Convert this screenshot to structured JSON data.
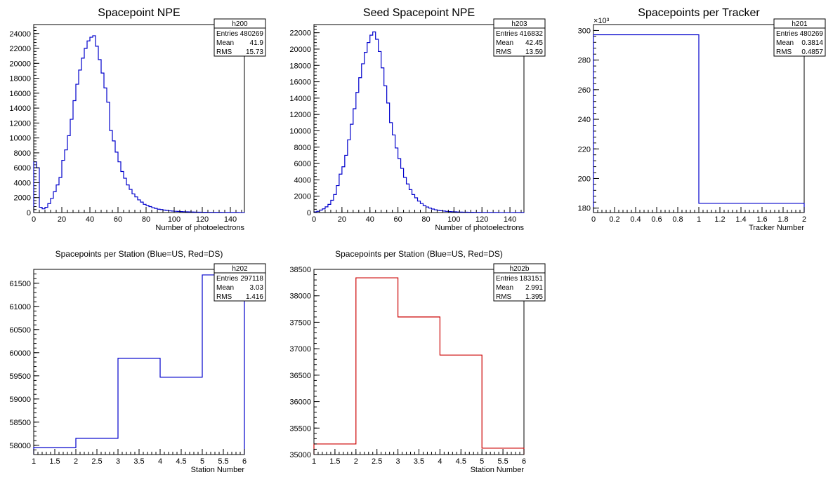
{
  "colors": {
    "blue": "#0000cc",
    "red": "#cc0000",
    "black": "#000000"
  },
  "chart_data": [
    {
      "type": "histogram",
      "title": "Spacepoint NPE",
      "xlabel": "Number of photoelectrons",
      "ylabel": "",
      "xlim": [
        0,
        150
      ],
      "ylim": [
        0,
        25200
      ],
      "xticks": [
        0,
        20,
        40,
        60,
        80,
        100,
        120,
        140
      ],
      "yticks": [
        0,
        2000,
        4000,
        6000,
        8000,
        10000,
        12000,
        14000,
        16000,
        18000,
        20000,
        22000,
        24000
      ],
      "yexponent": "",
      "color": "#0000cc",
      "bin_width": 2,
      "values": [
        6800,
        6000,
        700,
        500,
        700,
        1200,
        1900,
        2800,
        3700,
        4700,
        7000,
        8400,
        10300,
        12500,
        15000,
        17200,
        19100,
        20700,
        22000,
        23000,
        23500,
        23700,
        22300,
        20500,
        18700,
        16700,
        14800,
        11000,
        9600,
        8100,
        6800,
        5500,
        4600,
        3700,
        3100,
        2500,
        2100,
        1700,
        1400,
        1100,
        950,
        800,
        650,
        550,
        450,
        400,
        330,
        280,
        230,
        200,
        170,
        150,
        130,
        110,
        95,
        80,
        70,
        60,
        50,
        45,
        40,
        35,
        30,
        28,
        25,
        22,
        20,
        18,
        16,
        14,
        12,
        10,
        9,
        8,
        7
      ],
      "stats": {
        "name": "h200",
        "entries": "480269",
        "mean": "41.9",
        "rms": "15.73"
      }
    },
    {
      "type": "histogram",
      "title": "Seed Spacepoint NPE",
      "xlabel": "Number of photoelectrons",
      "ylabel": "",
      "xlim": [
        0,
        150
      ],
      "ylim": [
        0,
        23000
      ],
      "xticks": [
        0,
        20,
        40,
        60,
        80,
        100,
        120,
        140
      ],
      "yticks": [
        0,
        2000,
        4000,
        6000,
        8000,
        10000,
        12000,
        14000,
        16000,
        18000,
        20000,
        22000
      ],
      "yexponent": "",
      "color": "#0000cc",
      "bin_width": 2,
      "values": [
        80,
        150,
        300,
        450,
        700,
        1000,
        1500,
        2200,
        3300,
        4700,
        5600,
        7000,
        8900,
        10800,
        12700,
        14700,
        16500,
        18200,
        19600,
        20800,
        21700,
        22100,
        21200,
        19700,
        17700,
        15500,
        13400,
        11000,
        9500,
        7900,
        6600,
        5400,
        4300,
        3500,
        2800,
        2200,
        1800,
        1400,
        1100,
        850,
        680,
        550,
        430,
        340,
        270,
        220,
        180,
        145,
        120,
        100,
        85,
        70,
        60,
        50,
        42,
        36,
        30,
        26,
        22,
        19,
        16,
        14,
        12,
        10,
        9,
        8,
        7,
        6,
        5,
        4,
        4,
        3,
        3,
        2,
        2
      ],
      "stats": {
        "name": "h203",
        "entries": "416832",
        "mean": "42.45",
        "rms": "13.59"
      }
    },
    {
      "type": "histogram",
      "title": "Spacepoints per Tracker",
      "xlabel": "Tracker Number",
      "ylabel": "",
      "xlim": [
        0,
        2
      ],
      "ylim": [
        177,
        304
      ],
      "xticks": [
        0,
        0.2,
        0.4,
        0.6,
        0.8,
        1,
        1.2,
        1.4,
        1.6,
        1.8,
        2
      ],
      "yticks": [
        180,
        200,
        220,
        240,
        260,
        280,
        300
      ],
      "yexponent": "×10³",
      "color": "#0000cc",
      "bin_edges": [
        0,
        1,
        2
      ],
      "values": [
        297.1,
        183.2
      ],
      "stats": {
        "name": "h201",
        "entries": "480269",
        "mean": "0.3814",
        "rms": "0.4857"
      }
    },
    {
      "type": "histogram",
      "title": "Spacepoints per Station (Blue=US, Red=DS)",
      "xlabel": "Station Number",
      "ylabel": "",
      "xlim": [
        1,
        6
      ],
      "ylim": [
        57800,
        61800
      ],
      "xticks": [
        1,
        1.5,
        2,
        2.5,
        3,
        3.5,
        4,
        4.5,
        5,
        5.5,
        6
      ],
      "yticks": [
        58000,
        58500,
        59000,
        59500,
        60000,
        60500,
        61000,
        61500
      ],
      "yexponent": "",
      "color": "#0000cc",
      "bin_edges": [
        1,
        2,
        3,
        4,
        5,
        6
      ],
      "values": [
        57950,
        58150,
        59880,
        59470,
        61680
      ],
      "stats": {
        "name": "h202",
        "entries": "297118",
        "mean": "3.03",
        "rms": "1.416"
      }
    },
    {
      "type": "histogram",
      "title": "Spacepoints per Station (Blue=US, Red=DS)",
      "xlabel": "Station Number",
      "ylabel": "",
      "xlim": [
        1,
        6
      ],
      "ylim": [
        35000,
        38500
      ],
      "xticks": [
        1,
        1.5,
        2,
        2.5,
        3,
        3.5,
        4,
        4.5,
        5,
        5.5,
        6
      ],
      "yticks": [
        35000,
        35500,
        36000,
        36500,
        37000,
        37500,
        38000,
        38500
      ],
      "yexponent": "",
      "color": "#cc0000",
      "bin_edges": [
        1,
        2,
        3,
        4,
        5,
        6
      ],
      "values": [
        35200,
        38340,
        37600,
        36880,
        35120
      ],
      "stats": {
        "name": "h202b",
        "entries": "183151",
        "mean": "2.991",
        "rms": "1.395"
      }
    }
  ]
}
